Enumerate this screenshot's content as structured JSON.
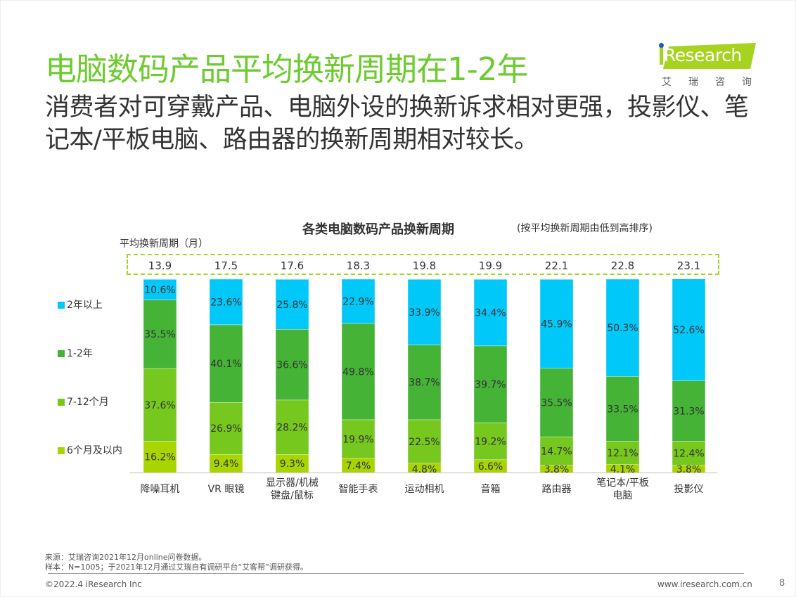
{
  "header": {
    "title": "电脑数码产品平均换新周期在1-2年",
    "subtitle": "消费者对可穿戴产品、电脑外设的换新诉求相对更强，投影仪、笔记本/平板电脑、路由器的换新周期相对较长。"
  },
  "logo": {
    "brand": "Research",
    "brand_cn": "艾瑞咨询"
  },
  "chart_data": {
    "type": "bar",
    "stacked": true,
    "title": "各类电脑数码产品换新周期",
    "note": "(按平均换新周期由低到高排序)",
    "avg_label": "平均换新周期（月）",
    "categories": [
      "降噪耳机",
      "VR 眼镜",
      "显示器/机械\n键盘/鼠标",
      "智能手表",
      "运动相机",
      "音箱",
      "路由器",
      "笔记本/平板\n电脑",
      "投影仪"
    ],
    "avg_months": [
      13.9,
      17.5,
      17.6,
      18.3,
      19.8,
      19.9,
      22.1,
      22.8,
      23.1
    ],
    "avg_months_labels": [
      "13.9",
      "17.5",
      "17.6",
      "18.3",
      "19.8",
      "19.9",
      "22.1",
      "22.8",
      "23.1"
    ],
    "series": [
      {
        "name": "6个月及以内",
        "color": "#a8d400",
        "values": [
          16.2,
          9.4,
          9.3,
          7.4,
          4.8,
          6.6,
          3.8,
          4.1,
          3.8
        ]
      },
      {
        "name": "7-12个月",
        "color": "#76c81e",
        "values": [
          37.6,
          26.9,
          28.2,
          19.9,
          22.5,
          19.2,
          14.7,
          12.1,
          12.4
        ]
      },
      {
        "name": "1-2年",
        "color": "#45b336",
        "values": [
          35.5,
          40.1,
          36.6,
          49.8,
          38.7,
          39.7,
          35.5,
          33.5,
          31.3
        ]
      },
      {
        "name": "2年以上",
        "color": "#00c8f8",
        "values": [
          10.6,
          23.6,
          25.8,
          22.9,
          33.9,
          34.4,
          45.9,
          50.3,
          52.6
        ]
      }
    ],
    "legend_order": [
      "2年以上",
      "1-2年",
      "7-12个月",
      "6个月及以内"
    ],
    "legend_position": "left",
    "ylim": [
      0,
      100
    ],
    "unit": "%",
    "grid": false
  },
  "footer": {
    "source": "来源：艾瑞咨询2021年12月online问卷数据。",
    "sample": "样本：N=1005；于2021年12月通过艾瑞自有调研平台“艾客帮”调研获得。",
    "copyright": "©2022.4 iResearch Inc",
    "website": "www.iresearch.com.cn",
    "page": "8"
  }
}
